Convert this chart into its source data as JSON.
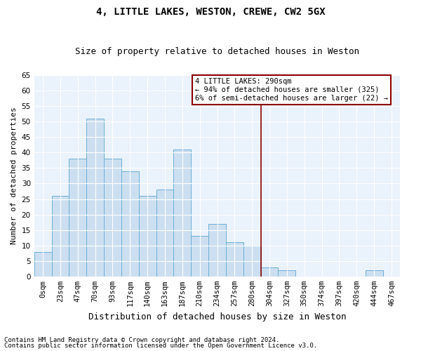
{
  "title1": "4, LITTLE LAKES, WESTON, CREWE, CW2 5GX",
  "title2": "Size of property relative to detached houses in Weston",
  "xlabel": "Distribution of detached houses by size in Weston",
  "ylabel": "Number of detached properties",
  "footnote1": "Contains HM Land Registry data © Crown copyright and database right 2024.",
  "footnote2": "Contains public sector information licensed under the Open Government Licence v3.0.",
  "bar_labels": [
    "0sqm",
    "23sqm",
    "47sqm",
    "70sqm",
    "93sqm",
    "117sqm",
    "140sqm",
    "163sqm",
    "187sqm",
    "210sqm",
    "234sqm",
    "257sqm",
    "280sqm",
    "304sqm",
    "327sqm",
    "350sqm",
    "374sqm",
    "397sqm",
    "420sqm",
    "444sqm",
    "467sqm"
  ],
  "bar_values": [
    8,
    26,
    38,
    51,
    38,
    34,
    26,
    28,
    41,
    13,
    17,
    11,
    10,
    3,
    2,
    0,
    0,
    0,
    0,
    2,
    0
  ],
  "bar_color": "#ccdff0",
  "bar_edge_color": "#6aaed6",
  "background_color": "#eaf2fb",
  "grid_color": "#ffffff",
  "ylim": [
    0,
    65
  ],
  "yticks": [
    0,
    5,
    10,
    15,
    20,
    25,
    30,
    35,
    40,
    45,
    50,
    55,
    60,
    65
  ],
  "property_line_x": 12.5,
  "property_line_color": "#8b0000",
  "legend_text1": "4 LITTLE LAKES: 290sqm",
  "legend_text2": "← 94% of detached houses are smaller (325)",
  "legend_text3": "6% of semi-detached houses are larger (22) →",
  "legend_box_color": "#8b0000",
  "title_fontsize": 10,
  "subtitle_fontsize": 9,
  "ylabel_fontsize": 8,
  "xlabel_fontsize": 9,
  "tick_fontsize": 7.5,
  "legend_fontsize": 7.5,
  "footnote_fontsize": 6.5
}
